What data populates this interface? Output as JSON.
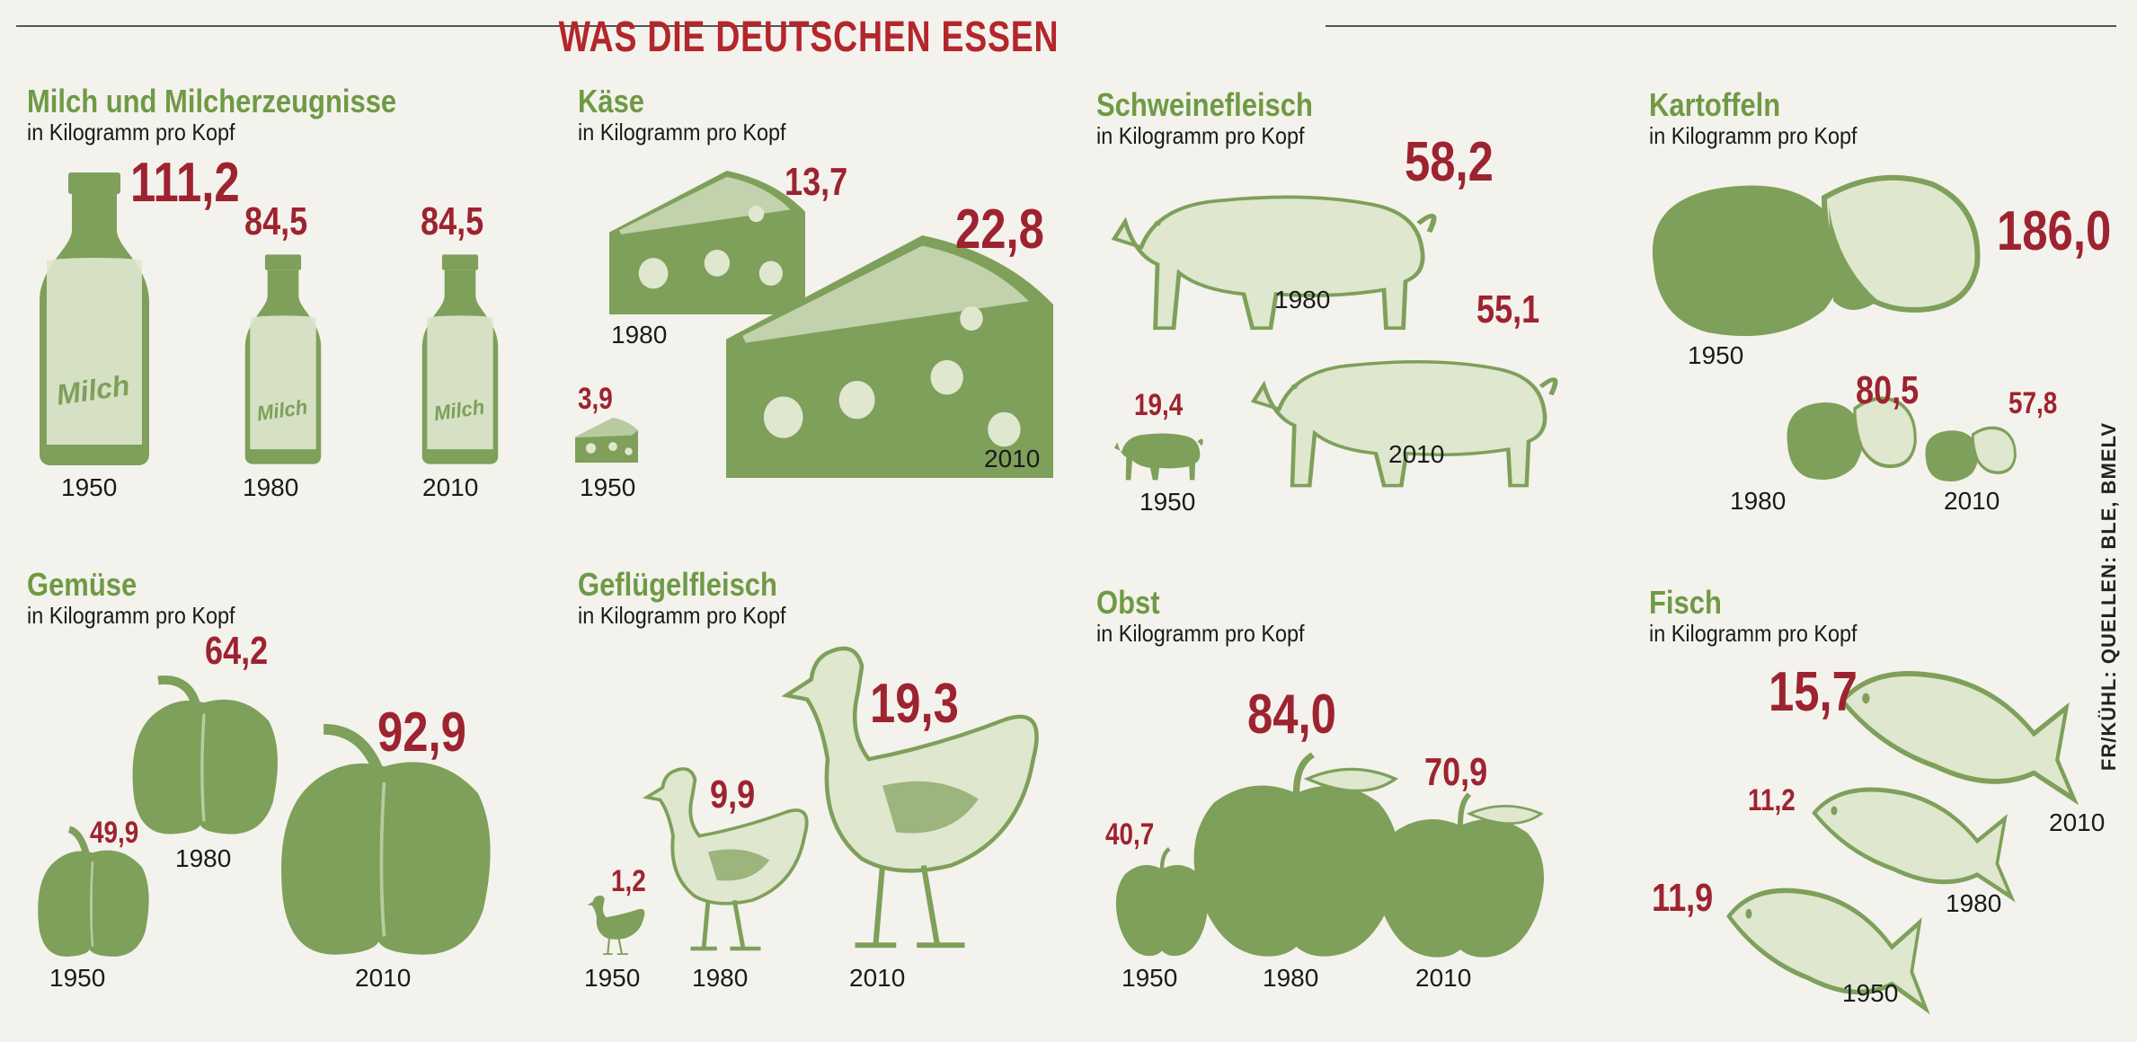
{
  "title": "WAS DIE DEUTSCHEN ESSEN",
  "source": "FR/KÜHL: QUELLEN: BLE, BMELV",
  "colors": {
    "title": "#b3262c",
    "value": "#9d2330",
    "category": "#6f9a45",
    "illustration": "#7ea05a"
  },
  "chart_data": [
    {
      "type": "bar",
      "title": "Milch und Milcherzeugnisse",
      "unit": "in Kilogramm pro Kopf",
      "categories": [
        "1950",
        "1980",
        "2010"
      ],
      "values": [
        111.2,
        84.5,
        84.5
      ],
      "labels": [
        "111,2",
        "84,5",
        "84,5"
      ],
      "icon": "milk-bottle-icon",
      "icon_text": "Milch"
    },
    {
      "type": "bar",
      "title": "Käse",
      "unit": "in Kilogramm pro Kopf",
      "categories": [
        "1950",
        "1980",
        "2010"
      ],
      "values": [
        3.9,
        13.7,
        22.8
      ],
      "labels": [
        "3,9",
        "13,7",
        "22,8"
      ],
      "icon": "cheese-icon"
    },
    {
      "type": "bar",
      "title": "Schweinefleisch",
      "unit": "in Kilogramm pro Kopf",
      "categories": [
        "1950",
        "1980",
        "2010"
      ],
      "values": [
        19.4,
        58.2,
        55.1
      ],
      "labels": [
        "19,4",
        "58,2",
        "55,1"
      ],
      "icon": "pig-icon"
    },
    {
      "type": "bar",
      "title": "Kartoffeln",
      "unit": "in Kilogramm pro Kopf",
      "categories": [
        "1950",
        "1980",
        "2010"
      ],
      "values": [
        186.0,
        80.5,
        57.8
      ],
      "labels": [
        "186,0",
        "80,5",
        "57,8"
      ],
      "icon": "potato-icon"
    },
    {
      "type": "bar",
      "title": "Gemüse",
      "unit": "in Kilogramm pro Kopf",
      "categories": [
        "1950",
        "1980",
        "2010"
      ],
      "values": [
        49.9,
        64.2,
        92.9
      ],
      "labels": [
        "49,9",
        "64,2",
        "92,9"
      ],
      "icon": "bell-pepper-icon"
    },
    {
      "type": "bar",
      "title": "Geflügelfleisch",
      "unit": "in Kilogramm pro Kopf",
      "categories": [
        "1950",
        "1980",
        "2010"
      ],
      "values": [
        1.2,
        9.9,
        19.3
      ],
      "labels": [
        "1,2",
        "9,9",
        "19,3"
      ],
      "icon": "chicken-icon"
    },
    {
      "type": "bar",
      "title": "Obst",
      "unit": "in Kilogramm pro Kopf",
      "categories": [
        "1950",
        "1980",
        "2010"
      ],
      "values": [
        40.7,
        84.0,
        70.9
      ],
      "labels": [
        "40,7",
        "84,0",
        "70,9"
      ],
      "icon": "apple-icon"
    },
    {
      "type": "bar",
      "title": "Fisch",
      "unit": "in Kilogramm pro Kopf",
      "categories": [
        "1950",
        "1980",
        "2010"
      ],
      "values": [
        11.9,
        11.2,
        15.7
      ],
      "labels": [
        "11,9",
        "11,2",
        "15,7"
      ],
      "icon": "fish-icon"
    }
  ]
}
